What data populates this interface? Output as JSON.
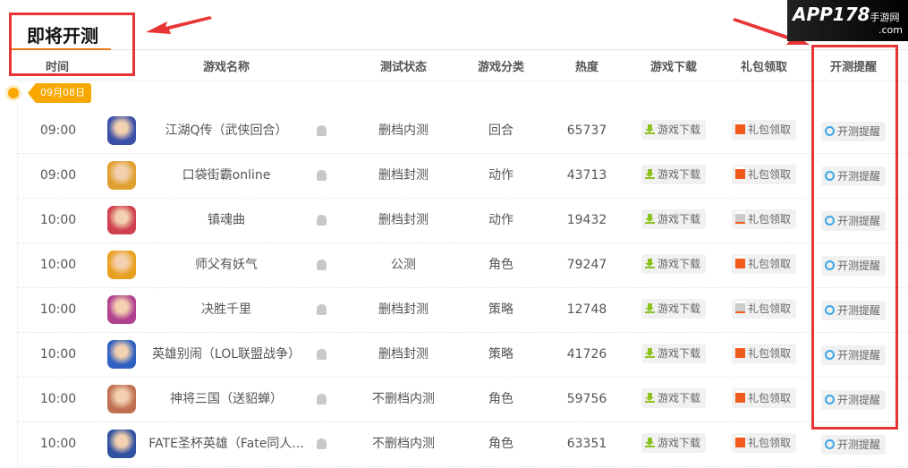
{
  "section_title": "即将开测",
  "columns": [
    "时间",
    "游戏名称",
    "测试状态",
    "游戏分类",
    "热度",
    "游戏下载",
    "礼包领取",
    "开测提醒"
  ],
  "date_badge": "09月08日",
  "download_label": "游戏下载",
  "gift_label": "礼包领取",
  "remind_label": "开测提醒",
  "rows": [
    {
      "time": "09:00",
      "name": "江湖Q传（武侠回合）",
      "status": "删档内测",
      "category": "回合",
      "heat": "65737",
      "gift_available": true,
      "icon_color": "#3a4fa8"
    },
    {
      "time": "09:00",
      "name": "口袋街霸online",
      "status": "删档封测",
      "category": "动作",
      "heat": "43713",
      "gift_available": true,
      "icon_color": "#e0a030"
    },
    {
      "time": "10:00",
      "name": "镇魂曲",
      "status": "删档封测",
      "category": "动作",
      "heat": "19432",
      "gift_available": false,
      "icon_color": "#d04050"
    },
    {
      "time": "10:00",
      "name": "师父有妖气",
      "status": "公测",
      "category": "角色",
      "heat": "79247",
      "gift_available": true,
      "icon_color": "#e8a020"
    },
    {
      "time": "10:00",
      "name": "决胜千里",
      "status": "删档封测",
      "category": "策略",
      "heat": "12748",
      "gift_available": false,
      "icon_color": "#b04090"
    },
    {
      "time": "10:00",
      "name": "英雄别闹（LOL联盟战争）",
      "status": "删档封测",
      "category": "策略",
      "heat": "41726",
      "gift_available": true,
      "icon_color": "#3060c0"
    },
    {
      "time": "10:00",
      "name": "神将三国（送貂蝉）",
      "status": "不删档内测",
      "category": "角色",
      "heat": "59756",
      "gift_available": true,
      "icon_color": "#c07050"
    },
    {
      "time": "10:00",
      "name": "FATE圣杯英雄（Fate同人...",
      "status": "不删档内测",
      "category": "角色",
      "heat": "63351",
      "gift_available": true,
      "icon_color": "#3050a0"
    }
  ],
  "watermark": {
    "brand": "APP178",
    "suffix": "手游网",
    "domain": ".com"
  }
}
